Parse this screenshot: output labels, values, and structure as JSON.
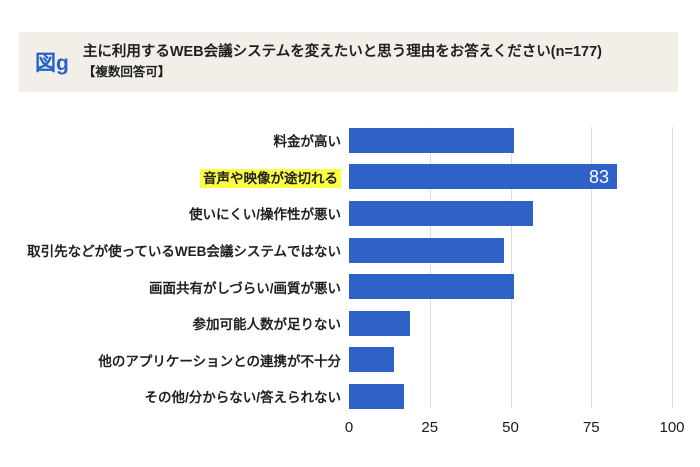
{
  "figure_tag": "図g",
  "header": {
    "title": "主に利用するWEB会議システムを変えたいと思う理由をお答えください(n=177)",
    "subtitle": "【複数回答可】"
  },
  "chart_data": {
    "type": "bar",
    "orientation": "horizontal",
    "title": "主に利用するWEB会議システムを変えたいと思う理由をお答えください(n=177)【複数回答可】",
    "categories": [
      "料金が高い",
      "音声や映像が途切れる",
      "使いにくい/操作性が悪い",
      "取引先などが使っているWEB会議システムではない",
      "画面共有がしづらい/画質が悪い",
      "参加可能人数が足りない",
      "他のアプリケーションとの連携が不十分",
      "その他/分からない/答えられない"
    ],
    "values": [
      51,
      83,
      57,
      48,
      51,
      19,
      14,
      17
    ],
    "highlighted_index": 1,
    "labeled_bars": [
      {
        "index": 1,
        "label": "83"
      }
    ],
    "xlabel": "",
    "ylabel": "",
    "xlim": [
      0,
      100
    ],
    "x_ticks": [
      0,
      25,
      50,
      75,
      100
    ],
    "grid": true,
    "legend": false
  },
  "colors": {
    "bar": "#2e62c6",
    "highlight": "#fdff43",
    "header_bg": "#f2efe8",
    "figure_tag": "#2563c9",
    "gridline": "#dcdcdc"
  }
}
